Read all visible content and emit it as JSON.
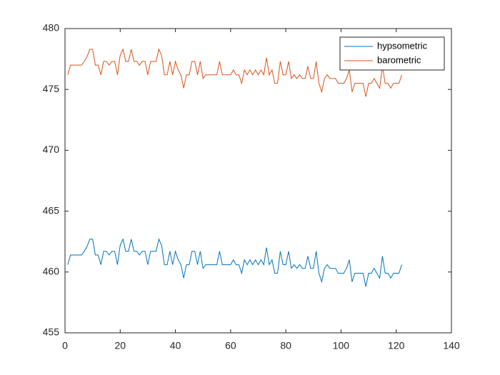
{
  "chart_data": {
    "type": "line",
    "x": [
      1,
      2,
      3,
      4,
      5,
      6,
      7,
      8,
      9,
      10,
      11,
      12,
      13,
      14,
      15,
      16,
      17,
      18,
      19,
      20,
      21,
      22,
      23,
      24,
      25,
      26,
      27,
      28,
      29,
      30,
      31,
      32,
      33,
      34,
      35,
      36,
      37,
      38,
      39,
      40,
      41,
      42,
      43,
      44,
      45,
      46,
      47,
      48,
      49,
      50,
      51,
      52,
      53,
      54,
      55,
      56,
      57,
      58,
      59,
      60,
      61,
      62,
      63,
      64,
      65,
      66,
      67,
      68,
      69,
      70,
      71,
      72,
      73,
      74,
      75,
      76,
      77,
      78,
      79,
      80,
      81,
      82,
      83,
      84,
      85,
      86,
      87,
      88,
      89,
      90,
      91,
      92,
      93,
      94,
      95,
      96,
      97,
      98,
      99,
      100,
      101,
      102,
      103,
      104,
      105,
      106,
      107,
      108,
      109,
      110,
      111,
      112,
      113,
      114,
      115,
      116,
      117,
      118,
      119,
      120,
      121,
      122
    ],
    "series": [
      {
        "name": "hypsometric",
        "color": "#0072BD",
        "values": [
          460.6,
          461.4,
          461.4,
          461.4,
          461.4,
          461.4,
          461.7,
          462.1,
          462.7,
          462.7,
          461.4,
          461.4,
          460.6,
          461.7,
          461.7,
          461.4,
          461.7,
          461.7,
          460.6,
          462.2,
          462.7,
          461.7,
          461.7,
          462.7,
          461.7,
          461.7,
          461.4,
          461.7,
          461.7,
          460.6,
          461.7,
          461.7,
          461.7,
          462.7,
          462.2,
          460.6,
          460.6,
          461.7,
          460.6,
          461.7,
          461.0,
          460.6,
          459.5,
          460.6,
          460.6,
          461.7,
          461.7,
          460.6,
          461.7,
          460.3,
          460.6,
          460.6,
          460.6,
          460.6,
          460.6,
          461.7,
          460.6,
          460.6,
          460.6,
          460.6,
          461.0,
          460.6,
          460.6,
          459.9,
          461.0,
          460.6,
          461.0,
          460.6,
          461.0,
          460.6,
          461.0,
          460.6,
          462.0,
          460.6,
          461.0,
          459.9,
          459.9,
          461.7,
          460.6,
          460.6,
          461.7,
          460.3,
          460.6,
          460.3,
          460.6,
          460.3,
          460.3,
          461.3,
          460.3,
          460.3,
          461.7,
          459.9,
          459.2,
          460.3,
          460.6,
          460.3,
          460.3,
          460.3,
          459.9,
          459.9,
          459.9,
          460.3,
          461.0,
          459.2,
          459.9,
          459.9,
          459.9,
          459.9,
          458.8,
          459.9,
          459.9,
          460.3,
          459.9,
          459.5,
          461.3,
          459.9,
          459.9,
          459.5,
          459.9,
          459.9,
          459.9,
          460.6
        ]
      },
      {
        "name": "barometric",
        "color": "#D95319",
        "values": [
          476.2,
          477,
          477,
          477,
          477,
          477,
          477.3,
          477.7,
          478.3,
          478.3,
          477,
          477,
          476.2,
          477.3,
          477.3,
          477,
          477.3,
          477.3,
          476.2,
          477.8,
          478.3,
          477.3,
          477.3,
          478.3,
          477.3,
          477.3,
          477,
          477.3,
          477.3,
          476.2,
          477.3,
          477.3,
          477.3,
          478.3,
          477.8,
          476.2,
          476.2,
          477.3,
          476.2,
          477.3,
          476.6,
          476.2,
          475.1,
          476.2,
          476.2,
          477.3,
          477.3,
          476.2,
          477.3,
          475.9,
          476.2,
          476.2,
          476.2,
          476.2,
          476.2,
          477.3,
          476.2,
          476.2,
          476.2,
          476.2,
          476.6,
          476.2,
          476.2,
          475.5,
          476.6,
          476.2,
          476.6,
          476.2,
          476.6,
          476.2,
          476.6,
          476.2,
          477.6,
          476.2,
          476.6,
          475.5,
          475.5,
          477.3,
          476.2,
          476.2,
          477.3,
          475.9,
          476.2,
          475.9,
          476.2,
          475.9,
          475.9,
          476.9,
          475.9,
          475.9,
          477.3,
          475.5,
          474.8,
          475.9,
          476.2,
          475.9,
          475.9,
          475.9,
          475.5,
          475.5,
          475.5,
          475.9,
          476.6,
          474.8,
          475.5,
          475.5,
          475.5,
          475.5,
          474.4,
          475.5,
          475.5,
          475.9,
          475.5,
          475.1,
          476.9,
          475.5,
          475.5,
          475.1,
          475.5,
          475.5,
          475.5,
          476.2
        ]
      }
    ],
    "xlim": [
      0,
      140
    ],
    "xticks": [
      0,
      20,
      40,
      60,
      80,
      100,
      120,
      140
    ],
    "ylim": [
      455,
      480
    ],
    "yticks": [
      455,
      460,
      465,
      470,
      475,
      480
    ],
    "legend": "northeast"
  }
}
